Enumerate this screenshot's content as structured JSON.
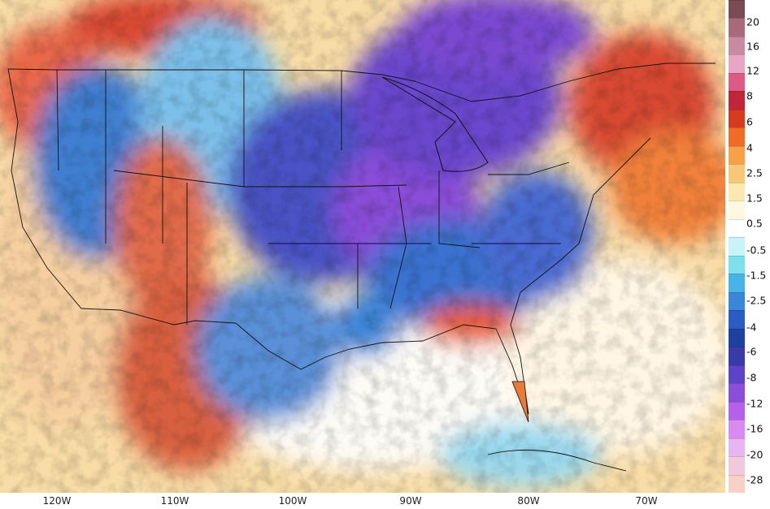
{
  "map": {
    "longitude_labels": [
      "120W",
      "110W",
      "100W",
      "90W",
      "80W",
      "70W"
    ],
    "longitude_values": [
      -120,
      -110,
      -100,
      -90,
      -80,
      -70
    ]
  },
  "colorbar": {
    "labels": [
      "20",
      "16",
      "12",
      "8",
      "6",
      "4",
      "2.5",
      "1.5",
      "0.5",
      "-0.5",
      "-1.5",
      "-2.5",
      "-4",
      "-6",
      "-8",
      "-12",
      "-16",
      "-20",
      "-28"
    ],
    "colors": [
      "#7a4a55",
      "#a86a7a",
      "#c88aa0",
      "#e6a6c4",
      "#dd5a86",
      "#c0263a",
      "#d63a20",
      "#f06a28",
      "#f8a048",
      "#f8c878",
      "#fde8b0",
      "#fff8e0",
      "#ffffff",
      "#c8f4f8",
      "#7ee0ec",
      "#48b4e6",
      "#3a86d8",
      "#2a5cc4",
      "#1e40a0",
      "#3a3aa8",
      "#5c44c8",
      "#8a4ed8",
      "#b460e8",
      "#d88af0",
      "#e8b4f4",
      "#f4c8dc",
      "#f8d0c8"
    ]
  }
}
